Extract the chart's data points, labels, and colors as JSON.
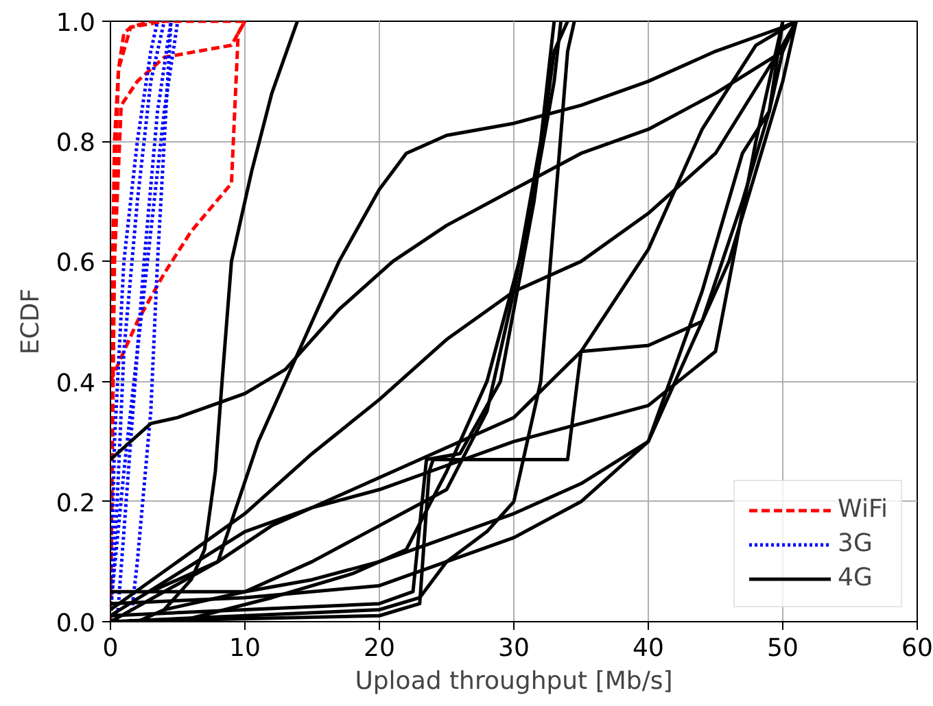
{
  "chart_data": {
    "type": "line",
    "xlabel": "Upload throughput [Mb/s]",
    "ylabel": "ECDF",
    "xlim": [
      0,
      60
    ],
    "ylim": [
      0,
      1
    ],
    "xticks": [
      0,
      10,
      20,
      30,
      40,
      50,
      60
    ],
    "yticks": [
      {
        "value": 0,
        "label": "0.0"
      },
      {
        "value": 0.2,
        "label": "0.2"
      },
      {
        "value": 0.4,
        "label": "0.4"
      },
      {
        "value": 0.6,
        "label": "0.6"
      },
      {
        "value": 0.8,
        "label": "0.8"
      },
      {
        "value": 1,
        "label": "1.0"
      }
    ],
    "grid": true,
    "legend": "bottom right",
    "marker": "none",
    "series": [
      {
        "name": "WiFi",
        "color": "#ff0000",
        "line_style": "dashed",
        "x": [
          0,
          0.1,
          0.3,
          0.6,
          1.0,
          1.5,
          3,
          10
        ],
        "values": [
          0,
          0.5,
          0.8,
          0.92,
          0.98,
          0.99,
          1,
          1
        ]
      },
      {
        "color": "#ff0000",
        "line_style": "dashed",
        "x": [
          0,
          1,
          2,
          4,
          6,
          9,
          9.5,
          10
        ],
        "values": [
          0.4,
          0.45,
          0.5,
          0.58,
          0.65,
          0.73,
          0.98,
          1
        ]
      },
      {
        "color": "#ff0000",
        "line_style": "dashed",
        "x": [
          0,
          0.3,
          0.8,
          2,
          4,
          9,
          9.5,
          10
        ],
        "values": [
          0,
          0.6,
          0.86,
          0.9,
          0.94,
          0.96,
          0.98,
          1
        ]
      },
      {
        "color": "#ff0000",
        "line_style": "dashed",
        "x": [
          0,
          0.3,
          0.6,
          1.5,
          4
        ],
        "values": [
          0,
          0.7,
          0.92,
          0.99,
          1
        ]
      },
      {
        "name": "3G",
        "color": "#0000ff",
        "line_style": "dotted",
        "x": [
          0,
          0.5,
          1,
          2,
          3,
          4
        ],
        "values": [
          0,
          0.2,
          0.45,
          0.7,
          0.9,
          1
        ]
      },
      {
        "color": "#0000ff",
        "line_style": "dotted",
        "x": [
          0.5,
          1.5,
          2.5,
          3.5,
          4.5
        ],
        "values": [
          0,
          0.3,
          0.6,
          0.85,
          1
        ]
      },
      {
        "color": "#0000ff",
        "line_style": "dotted",
        "x": [
          0,
          1,
          2.5,
          4,
          5
        ],
        "values": [
          0.02,
          0.25,
          0.55,
          0.85,
          1
        ]
      },
      {
        "color": "#0000ff",
        "line_style": "dotted",
        "x": [
          1.5,
          2,
          3,
          3.5,
          4,
          4.5
        ],
        "values": [
          0,
          0.1,
          0.35,
          0.6,
          0.8,
          1
        ]
      },
      {
        "color": "#0000ff",
        "line_style": "dotted",
        "x": [
          0,
          0.3,
          1,
          2,
          3,
          3.5
        ],
        "values": [
          0,
          0.3,
          0.6,
          0.8,
          0.95,
          1
        ]
      },
      {
        "name": "4G",
        "color": "#000000",
        "line_style": "solid",
        "x": [
          2,
          4,
          6,
          7,
          7.8,
          8.3,
          9,
          10.5,
          12,
          13.9
        ],
        "values": [
          0,
          0.02,
          0.07,
          0.12,
          0.25,
          0.4,
          0.6,
          0.75,
          0.88,
          1
        ]
      },
      {
        "color": "#000000",
        "line_style": "solid",
        "x": [
          0,
          3,
          5,
          10,
          13,
          17,
          21,
          25,
          30,
          35,
          40,
          45,
          50,
          51
        ],
        "values": [
          0.27,
          0.33,
          0.34,
          0.38,
          0.42,
          0.52,
          0.6,
          0.66,
          0.72,
          0.78,
          0.82,
          0.88,
          0.95,
          1
        ]
      },
      {
        "color": "#000000",
        "line_style": "solid",
        "x": [
          3,
          8,
          11,
          14,
          17,
          20,
          22,
          25,
          30,
          35,
          40,
          45,
          50,
          51
        ],
        "values": [
          0.05,
          0.1,
          0.3,
          0.45,
          0.6,
          0.72,
          0.78,
          0.81,
          0.83,
          0.86,
          0.9,
          0.95,
          0.99,
          1
        ]
      },
      {
        "color": "#000000",
        "line_style": "solid",
        "x": [
          0,
          5,
          10,
          15,
          20,
          25,
          30,
          35,
          40,
          45,
          50,
          51
        ],
        "values": [
          0.02,
          0.1,
          0.18,
          0.28,
          0.37,
          0.47,
          0.55,
          0.6,
          0.68,
          0.78,
          0.96,
          1
        ]
      },
      {
        "color": "#000000",
        "line_style": "solid",
        "x": [
          4,
          10,
          15,
          20,
          25,
          28,
          30,
          32,
          33
        ],
        "values": [
          0.02,
          0.05,
          0.1,
          0.16,
          0.22,
          0.35,
          0.55,
          0.8,
          1
        ]
      },
      {
        "color": "#000000",
        "line_style": "solid",
        "x": [
          5,
          12,
          18,
          22,
          25,
          28,
          31,
          33,
          33.5
        ],
        "values": [
          0,
          0.04,
          0.08,
          0.12,
          0.25,
          0.4,
          0.65,
          0.9,
          1
        ]
      },
      {
        "color": "#000000",
        "line_style": "solid",
        "x": [
          0,
          10,
          20,
          22.5,
          23.5,
          26,
          29,
          31.5,
          33,
          34
        ],
        "values": [
          0.01,
          0.02,
          0.03,
          0.05,
          0.27,
          0.28,
          0.4,
          0.7,
          0.95,
          1
        ]
      },
      {
        "color": "#000000",
        "line_style": "solid",
        "x": [
          0,
          20,
          23,
          23.7,
          24,
          30,
          34,
          35,
          40,
          44,
          47,
          49,
          50
        ],
        "values": [
          0,
          0.01,
          0.03,
          0.25,
          0.27,
          0.27,
          0.27,
          0.45,
          0.46,
          0.5,
          0.7,
          0.85,
          1
        ]
      },
      {
        "color": "#000000",
        "line_style": "solid",
        "x": [
          0,
          10,
          20,
          23,
          25,
          28,
          30,
          32,
          34,
          34.5
        ],
        "values": [
          0,
          0.01,
          0.02,
          0.04,
          0.1,
          0.15,
          0.2,
          0.4,
          0.95,
          1
        ]
      },
      {
        "color": "#000000",
        "line_style": "solid",
        "x": [
          0,
          10,
          15,
          20,
          25,
          30,
          35,
          40,
          43,
          46,
          48,
          50,
          51
        ],
        "values": [
          0.05,
          0.05,
          0.07,
          0.1,
          0.14,
          0.18,
          0.23,
          0.3,
          0.45,
          0.6,
          0.75,
          0.9,
          1
        ]
      },
      {
        "color": "#000000",
        "line_style": "solid",
        "x": [
          0,
          10,
          20,
          25,
          30,
          35,
          40,
          44,
          47,
          49,
          50,
          51
        ],
        "values": [
          0.03,
          0.04,
          0.06,
          0.1,
          0.14,
          0.2,
          0.3,
          0.55,
          0.78,
          0.85,
          0.95,
          1
        ]
      },
      {
        "color": "#000000",
        "line_style": "solid",
        "x": [
          0,
          8,
          12,
          16,
          20,
          25,
          30,
          35,
          40,
          44,
          48,
          51
        ],
        "values": [
          0,
          0.1,
          0.16,
          0.2,
          0.24,
          0.29,
          0.34,
          0.45,
          0.62,
          0.82,
          0.96,
          1
        ]
      },
      {
        "color": "#000000",
        "line_style": "solid",
        "x": [
          0,
          10,
          15,
          20,
          25,
          30,
          35,
          40,
          45,
          48,
          50
        ],
        "values": [
          0.01,
          0.15,
          0.19,
          0.22,
          0.26,
          0.3,
          0.33,
          0.36,
          0.45,
          0.8,
          1
        ]
      }
    ]
  }
}
